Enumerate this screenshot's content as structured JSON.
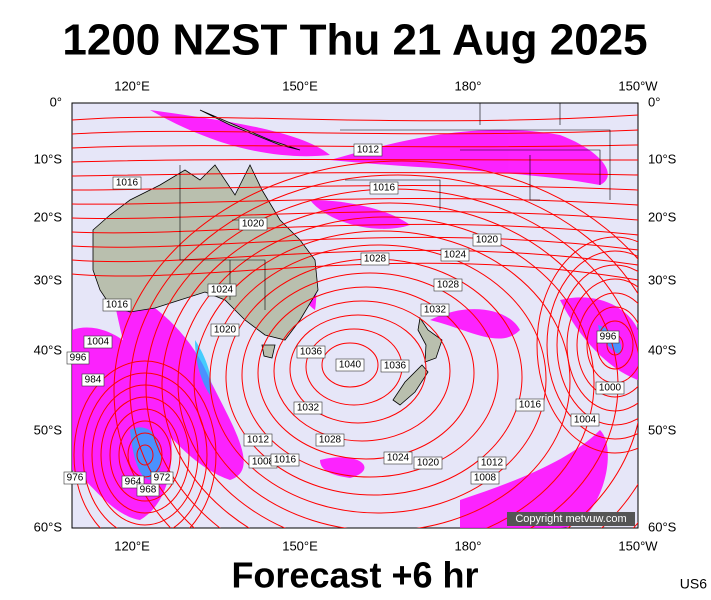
{
  "header": {
    "title": "1200 NZST Thu 21 Aug 2025"
  },
  "footer": {
    "forecast": "Forecast +6 hr",
    "code": "US6"
  },
  "map": {
    "lon_labels": [
      "120°E",
      "150°E",
      "180°",
      "150°W"
    ],
    "lat_labels": [
      "0°",
      "10°S",
      "20°S",
      "30°S",
      "40°S",
      "50°S",
      "60°S"
    ],
    "isobar_labels": [
      "1012",
      "1016",
      "1016",
      "1020",
      "1020",
      "1024",
      "1028",
      "1024",
      "1028",
      "1032",
      "1016",
      "1020",
      "1004",
      "996",
      "984",
      "1036",
      "1040",
      "1036",
      "996",
      "1000",
      "1032",
      "1028",
      "1012",
      "1008",
      "1016",
      "1024",
      "1020",
      "1012",
      "1008",
      "1004",
      "1016",
      "976",
      "964",
      "968",
      "972"
    ],
    "copyright": "Copyright metvuw.com"
  }
}
